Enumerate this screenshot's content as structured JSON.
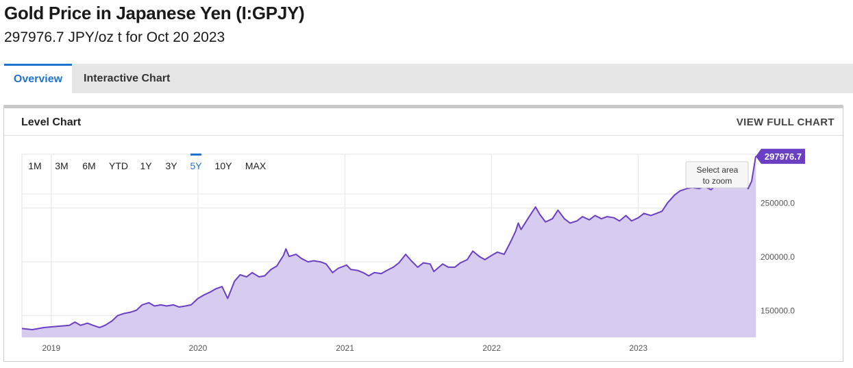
{
  "header": {
    "title": "Gold Price in Japanese Yen (I:GPJY)",
    "subtitle": "297976.7 JPY/oz t for Oct 20 2023"
  },
  "tabs": [
    {
      "label": "Overview",
      "active": true
    },
    {
      "label": "Interactive Chart",
      "active": false
    }
  ],
  "panel": {
    "title": "Level Chart",
    "view_full_label": "VIEW FULL CHART"
  },
  "range_buttons": [
    {
      "label": "1M",
      "active": false
    },
    {
      "label": "3M",
      "active": false
    },
    {
      "label": "6M",
      "active": false
    },
    {
      "label": "YTD",
      "active": false
    },
    {
      "label": "1Y",
      "active": false
    },
    {
      "label": "3Y",
      "active": false
    },
    {
      "label": "5Y",
      "active": true
    },
    {
      "label": "10Y",
      "active": false
    },
    {
      "label": "MAX",
      "active": false
    }
  ],
  "zoom_hint": {
    "line1": "Select area",
    "line2": "to zoom"
  },
  "colors": {
    "accent": "#1f75cc",
    "series_line": "#6a3fc4",
    "series_fill": "#d7cbef",
    "last_value_badge": "#6a3fc4"
  },
  "chart_data": {
    "type": "area",
    "title": "",
    "xlabel": "",
    "ylabel": "",
    "x_ticks": [
      "2019",
      "2020",
      "2021",
      "2022",
      "2023"
    ],
    "y_ticks": [
      150000,
      200000,
      250000
    ],
    "y_tick_labels": [
      "150000.0",
      "200000.0",
      "250000.0"
    ],
    "ylim": [
      130000,
      300000
    ],
    "xlim": [
      "2018-10-20",
      "2023-10-20"
    ],
    "grid": true,
    "last_value_label": "297976.7",
    "series": [
      {
        "name": "",
        "values": [
          [
            "2018-10-20",
            138000
          ],
          [
            "2018-11-15",
            137000
          ],
          [
            "2018-12-15",
            139000
          ],
          [
            "2019-01-15",
            140000
          ],
          [
            "2019-02-15",
            141000
          ],
          [
            "2019-03-01",
            144000
          ],
          [
            "2019-03-15",
            141000
          ],
          [
            "2019-04-01",
            143000
          ],
          [
            "2019-04-15",
            141000
          ],
          [
            "2019-05-01",
            139000
          ],
          [
            "2019-05-15",
            141000
          ],
          [
            "2019-06-01",
            145000
          ],
          [
            "2019-06-15",
            150000
          ],
          [
            "2019-07-01",
            152000
          ],
          [
            "2019-07-15",
            153000
          ],
          [
            "2019-08-01",
            155000
          ],
          [
            "2019-08-15",
            160000
          ],
          [
            "2019-09-01",
            162000
          ],
          [
            "2019-09-15",
            159000
          ],
          [
            "2019-10-01",
            160000
          ],
          [
            "2019-10-15",
            159000
          ],
          [
            "2019-11-01",
            160000
          ],
          [
            "2019-11-15",
            158000
          ],
          [
            "2019-12-01",
            159000
          ],
          [
            "2019-12-15",
            160000
          ],
          [
            "2020-01-01",
            166000
          ],
          [
            "2020-01-15",
            169000
          ],
          [
            "2020-02-01",
            172000
          ],
          [
            "2020-02-15",
            175000
          ],
          [
            "2020-03-01",
            177000
          ],
          [
            "2020-03-15",
            166000
          ],
          [
            "2020-04-01",
            182000
          ],
          [
            "2020-04-15",
            188000
          ],
          [
            "2020-05-01",
            186000
          ],
          [
            "2020-05-15",
            190000
          ],
          [
            "2020-06-01",
            186000
          ],
          [
            "2020-06-15",
            187000
          ],
          [
            "2020-07-01",
            193000
          ],
          [
            "2020-07-15",
            196000
          ],
          [
            "2020-08-01",
            206000
          ],
          [
            "2020-08-07",
            212000
          ],
          [
            "2020-08-15",
            205000
          ],
          [
            "2020-09-01",
            207000
          ],
          [
            "2020-09-15",
            203000
          ],
          [
            "2020-10-01",
            200000
          ],
          [
            "2020-10-15",
            201000
          ],
          [
            "2020-11-01",
            200000
          ],
          [
            "2020-11-15",
            198000
          ],
          [
            "2020-12-01",
            190000
          ],
          [
            "2020-12-15",
            194000
          ],
          [
            "2021-01-05",
            197000
          ],
          [
            "2021-01-15",
            193000
          ],
          [
            "2021-02-01",
            192000
          ],
          [
            "2021-02-15",
            190000
          ],
          [
            "2021-03-01",
            187000
          ],
          [
            "2021-03-15",
            190000
          ],
          [
            "2021-04-01",
            189000
          ],
          [
            "2021-04-15",
            192000
          ],
          [
            "2021-05-01",
            195000
          ],
          [
            "2021-05-15",
            199000
          ],
          [
            "2021-06-01",
            207000
          ],
          [
            "2021-06-15",
            201000
          ],
          [
            "2021-07-01",
            195000
          ],
          [
            "2021-07-15",
            199000
          ],
          [
            "2021-08-01",
            198000
          ],
          [
            "2021-08-10",
            191000
          ],
          [
            "2021-09-01",
            198000
          ],
          [
            "2021-09-15",
            195000
          ],
          [
            "2021-10-01",
            195000
          ],
          [
            "2021-10-15",
            199000
          ],
          [
            "2021-11-01",
            202000
          ],
          [
            "2021-11-15",
            210000
          ],
          [
            "2021-12-01",
            205000
          ],
          [
            "2021-12-15",
            202000
          ],
          [
            "2022-01-01",
            206000
          ],
          [
            "2022-01-15",
            209000
          ],
          [
            "2022-02-01",
            207000
          ],
          [
            "2022-02-15",
            217000
          ],
          [
            "2022-03-01",
            228000
          ],
          [
            "2022-03-08",
            236000
          ],
          [
            "2022-03-15",
            230000
          ],
          [
            "2022-04-01",
            240000
          ],
          [
            "2022-04-20",
            251000
          ],
          [
            "2022-05-01",
            244000
          ],
          [
            "2022-05-15",
            237000
          ],
          [
            "2022-06-01",
            240000
          ],
          [
            "2022-06-15",
            248000
          ],
          [
            "2022-07-01",
            240000
          ],
          [
            "2022-07-15",
            236000
          ],
          [
            "2022-08-01",
            238000
          ],
          [
            "2022-08-15",
            242000
          ],
          [
            "2022-09-01",
            239000
          ],
          [
            "2022-09-15",
            243000
          ],
          [
            "2022-10-01",
            240000
          ],
          [
            "2022-10-15",
            242000
          ],
          [
            "2022-11-01",
            241000
          ],
          [
            "2022-11-15",
            238000
          ],
          [
            "2022-12-01",
            243000
          ],
          [
            "2022-12-15",
            238000
          ],
          [
            "2023-01-01",
            241000
          ],
          [
            "2023-01-15",
            245000
          ],
          [
            "2023-02-01",
            243000
          ],
          [
            "2023-02-15",
            245000
          ],
          [
            "2023-03-01",
            247000
          ],
          [
            "2023-03-15",
            255000
          ],
          [
            "2023-04-01",
            262000
          ],
          [
            "2023-04-15",
            266000
          ],
          [
            "2023-05-01",
            268000
          ],
          [
            "2023-05-15",
            269000
          ],
          [
            "2023-06-01",
            268000
          ],
          [
            "2023-06-15",
            270000
          ],
          [
            "2023-07-01",
            267000
          ],
          [
            "2023-07-15",
            272000
          ],
          [
            "2023-08-01",
            273000
          ],
          [
            "2023-08-15",
            271000
          ],
          [
            "2023-09-01",
            278000
          ],
          [
            "2023-09-15",
            283000
          ],
          [
            "2023-10-01",
            268000
          ],
          [
            "2023-10-10",
            275000
          ],
          [
            "2023-10-20",
            297977
          ]
        ]
      }
    ]
  }
}
